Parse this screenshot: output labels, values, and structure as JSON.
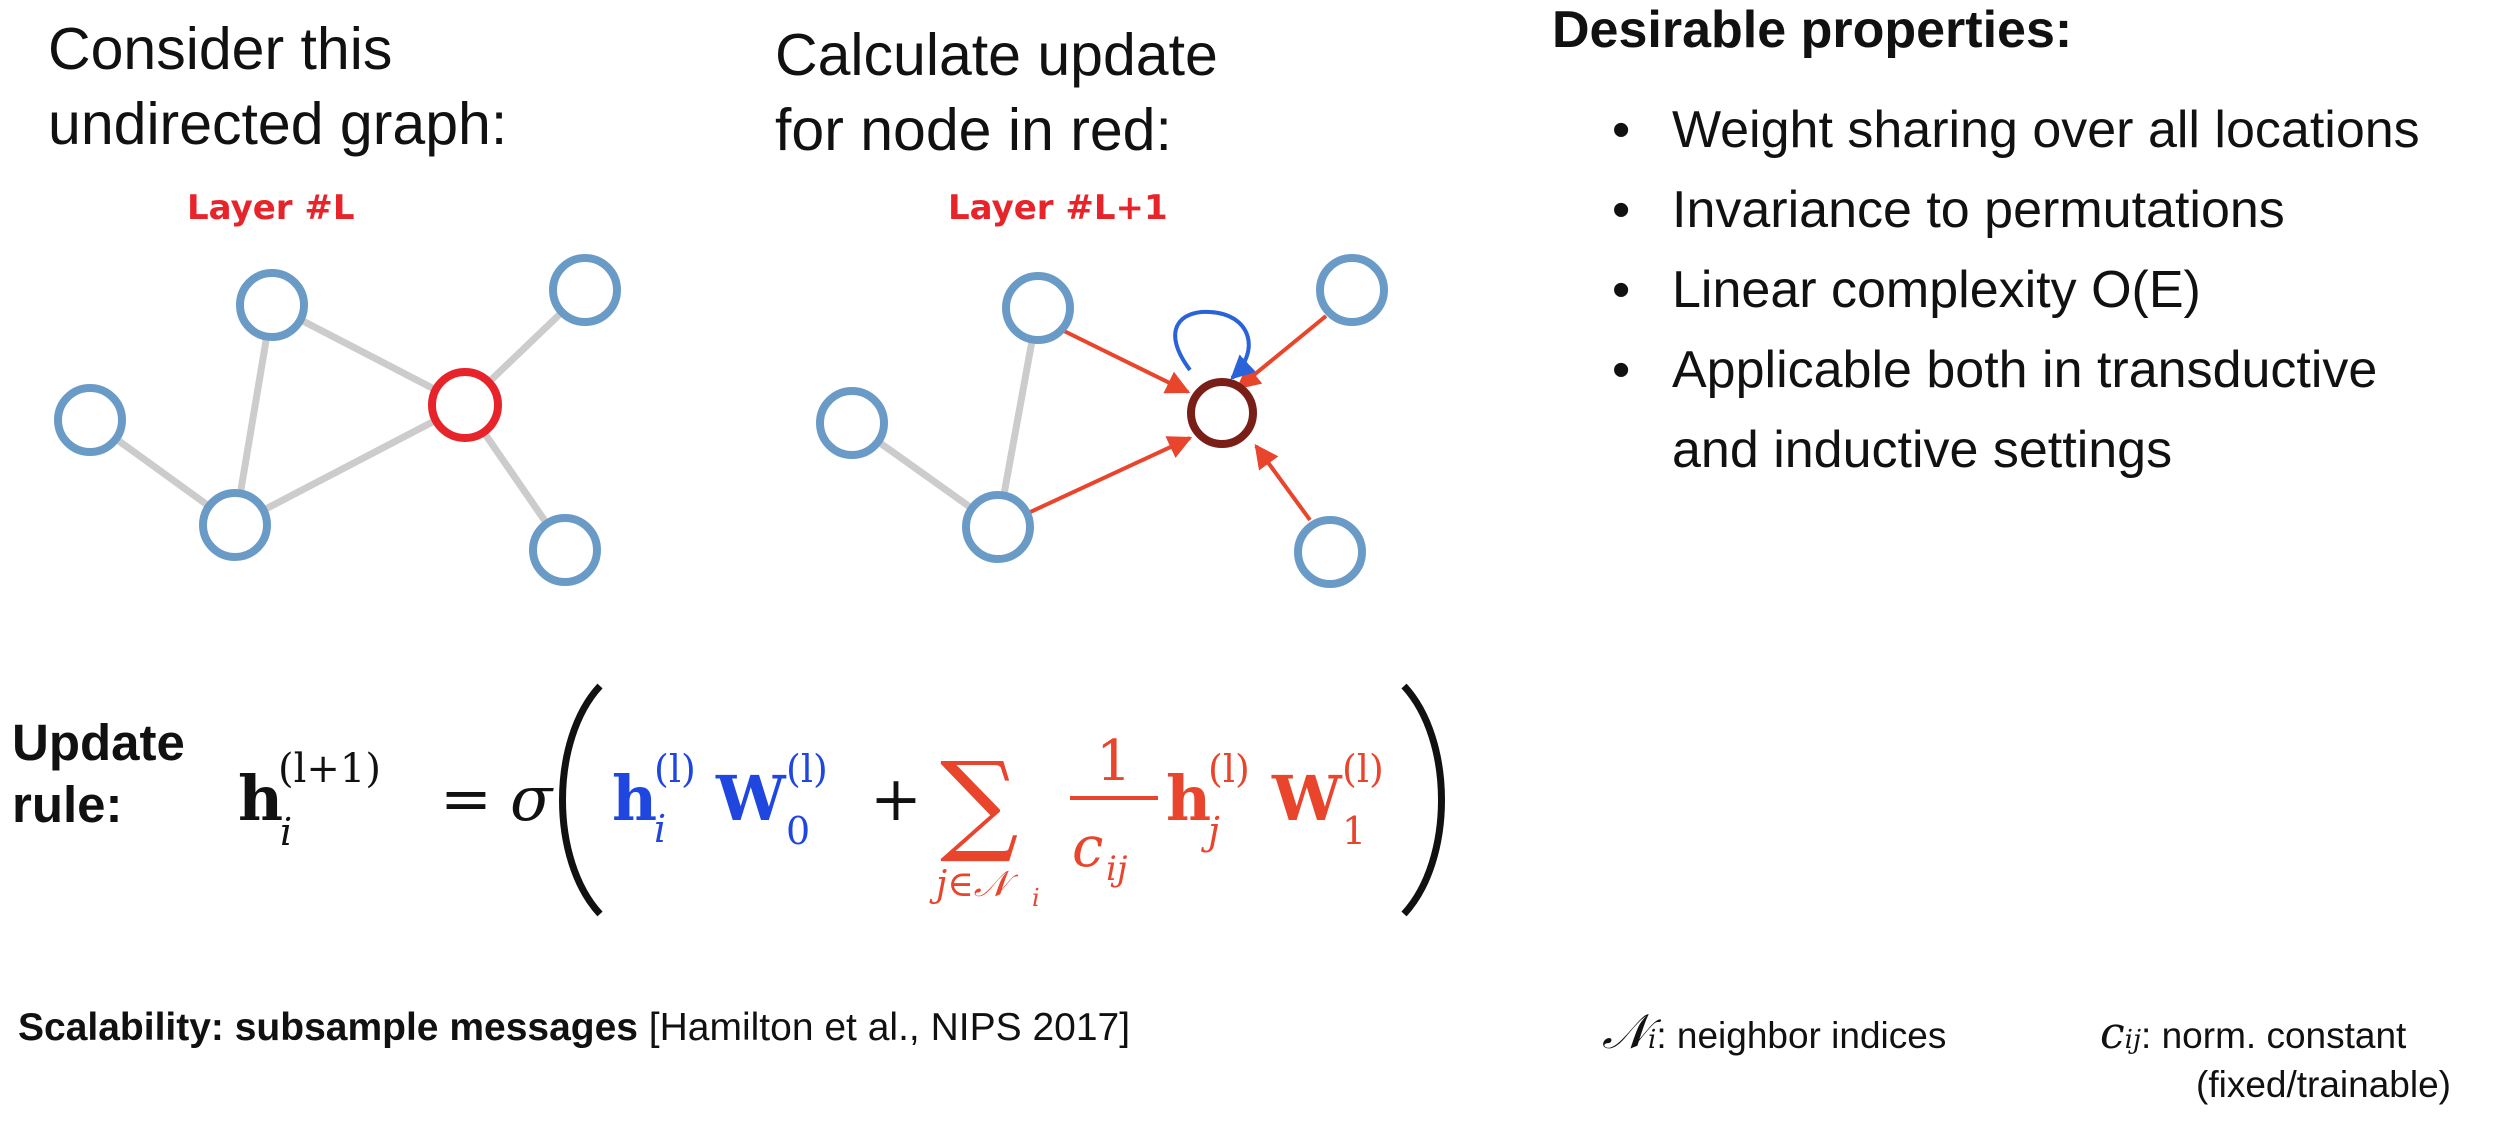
{
  "left_panel": {
    "heading": "Consider this\nundirected graph:",
    "layer_label": "Layer #L"
  },
  "middle_panel": {
    "heading": "Calculate update\nfor node in red:",
    "layer_label": "Layer #L+1"
  },
  "properties": {
    "title": "Desirable properties:",
    "items": [
      "Weight sharing over all locations",
      "Invariance to permutations",
      "Linear complexity O(E)",
      "Applicable both in transductive",
      "and inductive settings"
    ]
  },
  "update_rule": {
    "label": "Update\nrule:",
    "lhs_symbol": "h",
    "lhs_sub": "i",
    "lhs_sup": "(l+1)",
    "equals": "=",
    "sigma": "σ",
    "plus": "+",
    "sum": "∑",
    "sum_sub": "j∈𝒩",
    "sum_sub_i": "i",
    "frac_num": "1",
    "frac_den": "c",
    "frac_den_sub": "ij",
    "self_h": "h",
    "self_h_sub": "i",
    "self_h_sup": "(l)",
    "self_w": "W",
    "self_w_sub": "0",
    "self_w_sup": "(l)",
    "nb_h": "h",
    "nb_h_sub": "j",
    "nb_h_sup": "(l)",
    "nb_w": "W",
    "nb_w_sub": "1",
    "nb_w_sup": "(l)"
  },
  "footer": {
    "scalability_bold": "Scalability: subsample messages",
    "scalability_ref": " [Hamilton et al., NIPS 2017]",
    "neighbor_symbol": "𝒩",
    "neighbor_sub": "i",
    "neighbor_text": ": neighbor indices",
    "norm_symbol": "c",
    "norm_sub": "ij",
    "norm_text": ": norm. constant",
    "norm_text2": "(fixed/trainable)"
  },
  "colors": {
    "node_blue": "#6a9bc7",
    "node_red": "#e8242b",
    "node_dark_red": "#7a1f17",
    "edge_gray": "#cccccc",
    "edge_red": "#e8452c",
    "self_loop_blue": "#2962d9",
    "math_blue": "#1f47e0",
    "math_red": "#e8452c"
  }
}
